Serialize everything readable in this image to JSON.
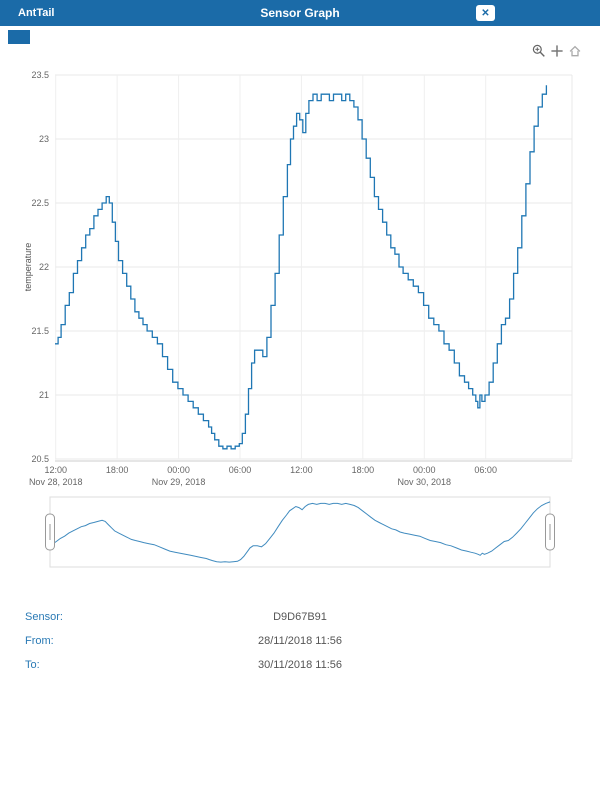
{
  "header": {
    "brand": "AntTail",
    "title": "Sensor Graph",
    "close_label": "✕"
  },
  "toolbar": {
    "icons": [
      "zoom-in",
      "pan",
      "reset-axes-home"
    ]
  },
  "info": {
    "sensor_label": "Sensor:",
    "sensor_value": "D9D67B91",
    "from_label": "From:",
    "from_value": "28/11/2018 11:56",
    "to_label": "To:",
    "to_value": "30/11/2018 11:56"
  },
  "colors": {
    "header_bg": "#1b6ba8",
    "line": "#1f77b4",
    "grid": "#e8e8e8",
    "tick_text": "#666666",
    "label_blue": "#2a7ab5",
    "value_gray": "#555555"
  },
  "chart_data": {
    "type": "line",
    "title": "",
    "xlabel": "",
    "ylabel": "temperature",
    "ylim": [
      20.5,
      23.5
    ],
    "xlim_hours": [
      0,
      50.5
    ],
    "grid": true,
    "navigator": true,
    "line_color": "#1f77b4",
    "y_ticks": [
      {
        "v": 20.5,
        "label": "20.5"
      },
      {
        "v": 21,
        "label": "21"
      },
      {
        "v": 21.5,
        "label": "21.5"
      },
      {
        "v": 22,
        "label": "22"
      },
      {
        "v": 22.5,
        "label": "22.5"
      },
      {
        "v": 23,
        "label": "23"
      },
      {
        "v": 23.5,
        "label": "23.5"
      }
    ],
    "x_ticks": [
      {
        "hour": 0.07,
        "label": "12:00",
        "date": "Nov 28, 2018"
      },
      {
        "hour": 6.07,
        "label": "18:00"
      },
      {
        "hour": 12.07,
        "label": "00:00",
        "date": "Nov 29, 2018"
      },
      {
        "hour": 18.07,
        "label": "06:00"
      },
      {
        "hour": 24.07,
        "label": "12:00"
      },
      {
        "hour": 30.07,
        "label": "18:00"
      },
      {
        "hour": 36.07,
        "label": "00:00",
        "date": "Nov 30, 2018"
      },
      {
        "hour": 42.07,
        "label": "06:00"
      }
    ],
    "series": [
      {
        "name": "temperature",
        "points": [
          [
            0,
            21.4
          ],
          [
            0.3,
            21.45
          ],
          [
            0.6,
            21.55
          ],
          [
            1,
            21.7
          ],
          [
            1.4,
            21.8
          ],
          [
            1.8,
            21.95
          ],
          [
            2.2,
            22.05
          ],
          [
            2.6,
            22.15
          ],
          [
            3,
            22.25
          ],
          [
            3.4,
            22.3
          ],
          [
            3.8,
            22.4
          ],
          [
            4.2,
            22.45
          ],
          [
            4.6,
            22.5
          ],
          [
            5,
            22.55
          ],
          [
            5.3,
            22.5
          ],
          [
            5.6,
            22.35
          ],
          [
            5.9,
            22.2
          ],
          [
            6.2,
            22.05
          ],
          [
            6.6,
            21.95
          ],
          [
            7,
            21.85
          ],
          [
            7.4,
            21.75
          ],
          [
            7.8,
            21.65
          ],
          [
            8.2,
            21.6
          ],
          [
            8.6,
            21.55
          ],
          [
            9,
            21.5
          ],
          [
            9.5,
            21.45
          ],
          [
            10,
            21.4
          ],
          [
            10.5,
            21.3
          ],
          [
            11,
            21.2
          ],
          [
            11.5,
            21.1
          ],
          [
            12,
            21.05
          ],
          [
            12.5,
            21
          ],
          [
            13,
            20.95
          ],
          [
            13.5,
            20.9
          ],
          [
            14,
            20.85
          ],
          [
            14.5,
            20.8
          ],
          [
            15,
            20.75
          ],
          [
            15.3,
            20.7
          ],
          [
            15.6,
            20.65
          ],
          [
            16,
            20.6
          ],
          [
            16.4,
            20.58
          ],
          [
            16.8,
            20.6
          ],
          [
            17.2,
            20.58
          ],
          [
            17.6,
            20.6
          ],
          [
            18,
            20.62
          ],
          [
            18.3,
            20.7
          ],
          [
            18.6,
            20.85
          ],
          [
            18.9,
            21.05
          ],
          [
            19.2,
            21.25
          ],
          [
            19.5,
            21.35
          ],
          [
            19.9,
            21.35
          ],
          [
            20.3,
            21.3
          ],
          [
            20.7,
            21.45
          ],
          [
            21.1,
            21.7
          ],
          [
            21.5,
            21.95
          ],
          [
            21.9,
            22.25
          ],
          [
            22.3,
            22.55
          ],
          [
            22.7,
            22.8
          ],
          [
            23,
            23
          ],
          [
            23.3,
            23.1
          ],
          [
            23.6,
            23.2
          ],
          [
            23.9,
            23.15
          ],
          [
            24.2,
            23.05
          ],
          [
            24.5,
            23.2
          ],
          [
            24.8,
            23.3
          ],
          [
            25.2,
            23.35
          ],
          [
            25.6,
            23.3
          ],
          [
            26,
            23.35
          ],
          [
            26.4,
            23.35
          ],
          [
            26.8,
            23.3
          ],
          [
            27.2,
            23.35
          ],
          [
            27.6,
            23.35
          ],
          [
            28,
            23.3
          ],
          [
            28.4,
            23.35
          ],
          [
            28.8,
            23.3
          ],
          [
            29.2,
            23.25
          ],
          [
            29.6,
            23.15
          ],
          [
            30,
            23
          ],
          [
            30.4,
            22.85
          ],
          [
            30.8,
            22.7
          ],
          [
            31.2,
            22.55
          ],
          [
            31.6,
            22.45
          ],
          [
            32,
            22.35
          ],
          [
            32.4,
            22.25
          ],
          [
            32.8,
            22.15
          ],
          [
            33.2,
            22.1
          ],
          [
            33.6,
            22
          ],
          [
            34,
            21.95
          ],
          [
            34.5,
            21.9
          ],
          [
            35,
            21.85
          ],
          [
            35.5,
            21.8
          ],
          [
            36,
            21.7
          ],
          [
            36.5,
            21.6
          ],
          [
            37,
            21.55
          ],
          [
            37.5,
            21.5
          ],
          [
            38,
            21.4
          ],
          [
            38.5,
            21.35
          ],
          [
            39,
            21.25
          ],
          [
            39.5,
            21.15
          ],
          [
            40,
            21.1
          ],
          [
            40.4,
            21.05
          ],
          [
            40.8,
            21
          ],
          [
            41.1,
            20.95
          ],
          [
            41.3,
            20.9
          ],
          [
            41.5,
            21
          ],
          [
            41.7,
            20.95
          ],
          [
            42,
            21
          ],
          [
            42.4,
            21.1
          ],
          [
            42.8,
            21.25
          ],
          [
            43.2,
            21.4
          ],
          [
            43.6,
            21.55
          ],
          [
            44,
            21.6
          ],
          [
            44.4,
            21.75
          ],
          [
            44.8,
            21.95
          ],
          [
            45.2,
            22.15
          ],
          [
            45.6,
            22.4
          ],
          [
            46,
            22.65
          ],
          [
            46.4,
            22.9
          ],
          [
            46.8,
            23.1
          ],
          [
            47.2,
            23.25
          ],
          [
            47.6,
            23.35
          ],
          [
            48,
            23.42
          ]
        ]
      }
    ]
  }
}
